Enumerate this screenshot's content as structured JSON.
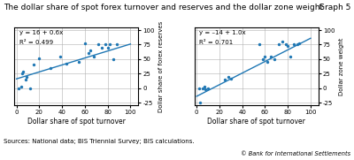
{
  "title": "The dollar share of spot forex turnover and reserves and the dollar zone weight",
  "annotations": [
    "Graph 5",
    "Sources: National data; BIS Triennial Survey; BIS calculations.",
    "© Bank for International Settlements"
  ],
  "chart_data": [
    {
      "type": "scatter",
      "x_label": "Dollar share of spot turnover",
      "y_label": "Dollar share of forex reserves",
      "annotations": [
        "y = 16 + 0.6x",
        "R² = 0.499"
      ],
      "xlim": [
        -2,
        107
      ],
      "ylim": [
        -30,
        105
      ],
      "xticks": [
        0,
        20,
        40,
        60,
        80,
        100
      ],
      "yticks": [
        -25,
        0,
        25,
        50,
        75,
        100
      ],
      "grid": true,
      "series": [
        {
          "type": "scatter",
          "x": [
            2,
            4,
            5,
            6,
            8,
            9,
            12,
            15,
            20,
            30,
            38,
            44,
            55,
            60,
            63,
            65,
            68,
            72,
            75,
            78,
            80,
            82,
            85,
            88
          ],
          "values": [
            0,
            2,
            25,
            28,
            15,
            20,
            0,
            40,
            52,
            35,
            55,
            42,
            45,
            78,
            60,
            65,
            55,
            75,
            70,
            75,
            70,
            75,
            50,
            75
          ]
        },
        {
          "type": "line",
          "x": [
            0,
            100
          ],
          "values": [
            16,
            76
          ]
        }
      ]
    },
    {
      "type": "scatter",
      "x_label": "Dollar share of spot turnover",
      "y_label": "Dollar zone weight",
      "annotations": [
        "y = –14 + 1.0x",
        "R² = 0.701"
      ],
      "xlim": [
        -2,
        107
      ],
      "ylim": [
        -30,
        105
      ],
      "xticks": [
        0,
        20,
        40,
        60,
        80,
        100
      ],
      "yticks": [
        -25,
        0,
        25,
        50,
        75,
        100
      ],
      "grid": true,
      "series": [
        {
          "type": "scatter",
          "x": [
            2,
            3,
            5,
            7,
            8,
            10,
            25,
            28,
            30,
            55,
            58,
            60,
            62,
            65,
            68,
            72,
            75,
            78,
            80,
            82,
            85,
            88,
            90
          ],
          "values": [
            0,
            -25,
            0,
            3,
            -2,
            0,
            15,
            20,
            17,
            75,
            50,
            55,
            45,
            55,
            50,
            75,
            80,
            75,
            72,
            55,
            75,
            75,
            78
          ]
        },
        {
          "type": "line",
          "x": [
            0,
            100
          ],
          "values": [
            -14,
            86
          ]
        }
      ]
    }
  ]
}
